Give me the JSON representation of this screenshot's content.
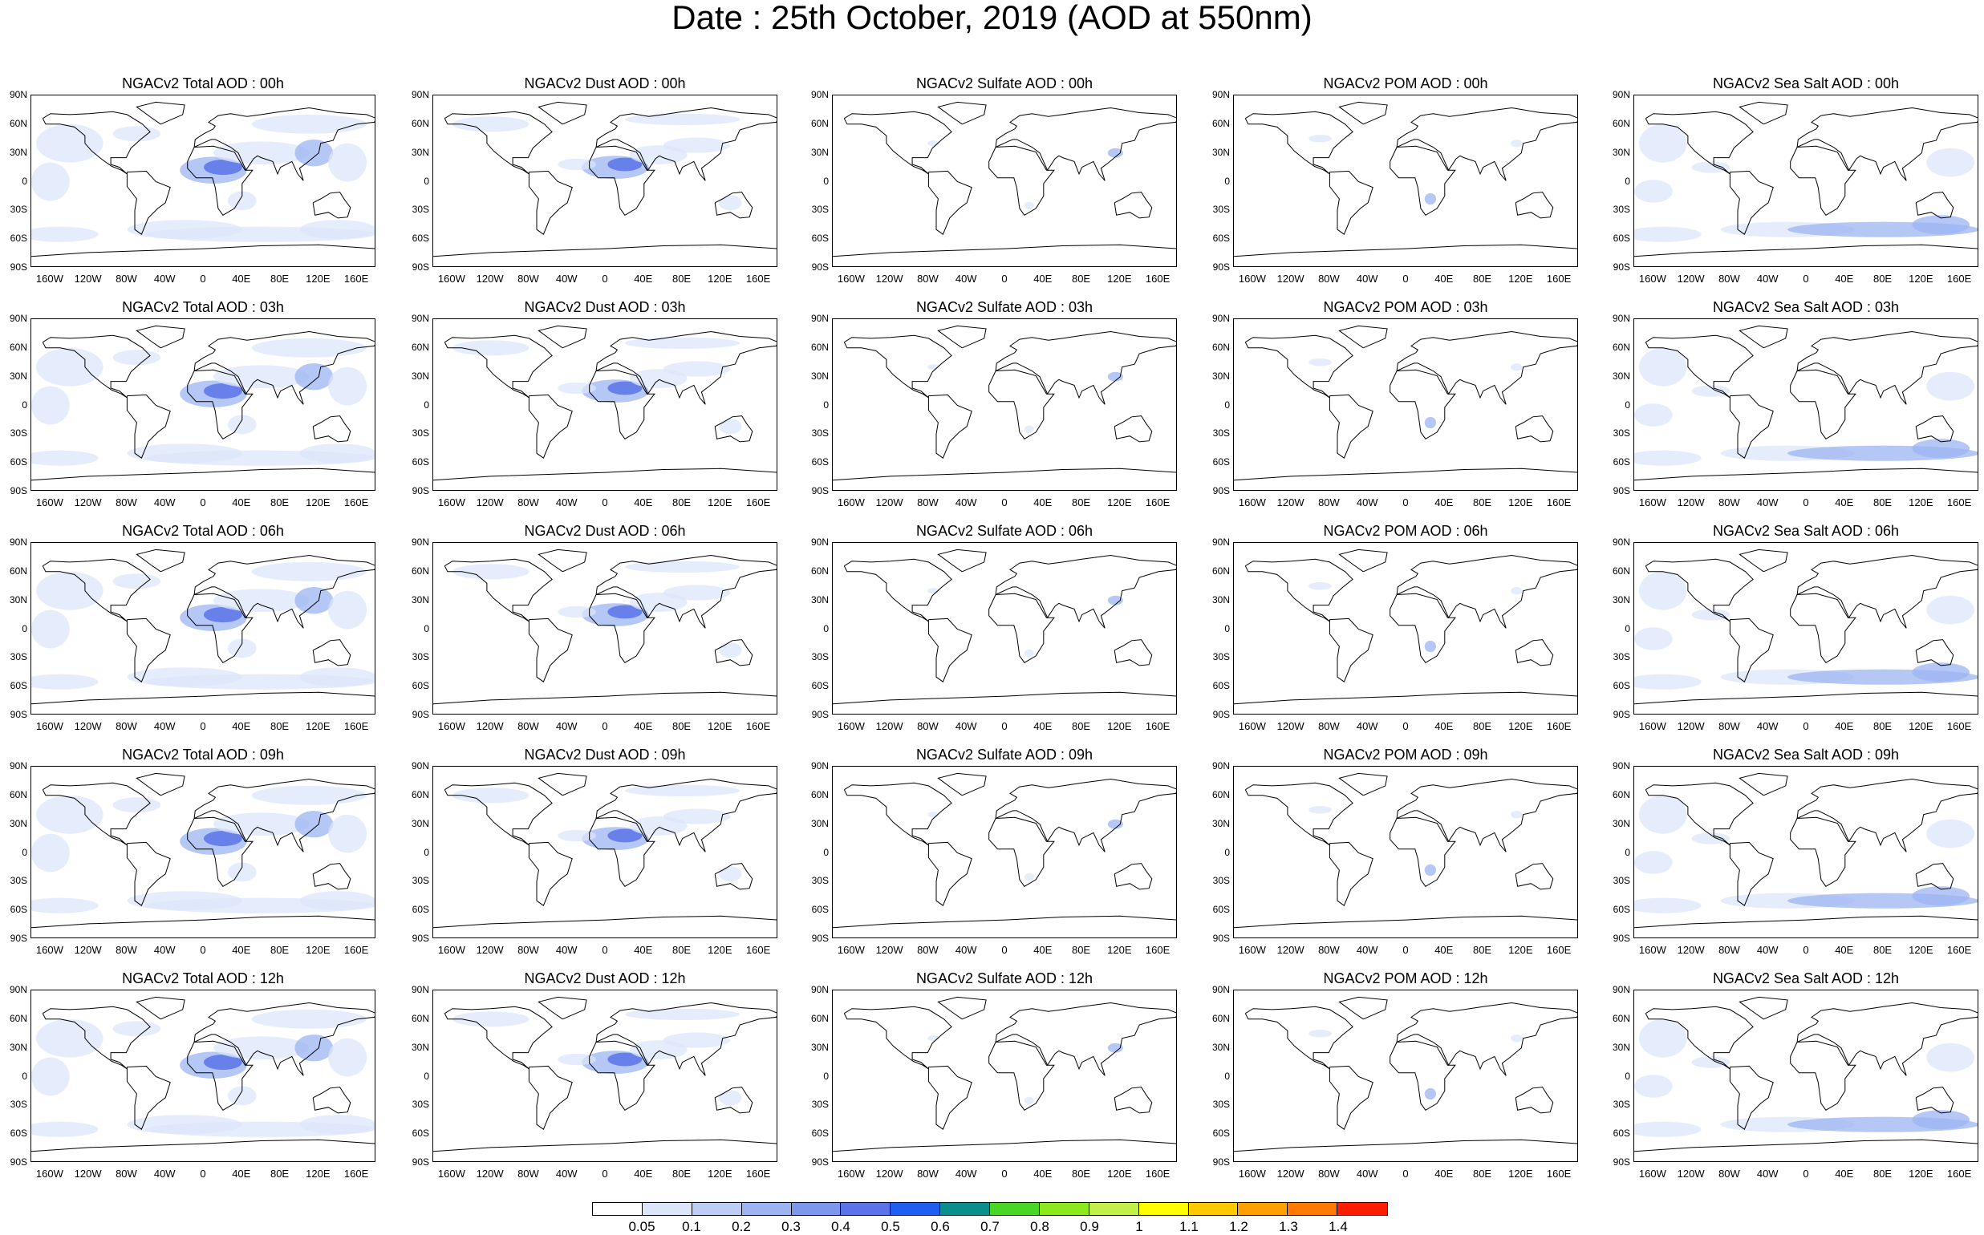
{
  "title": "Date : 25th October, 2019 (AOD at 550nm)",
  "lat_ticks": [
    "90N",
    "60N",
    "30N",
    "0",
    "30S",
    "60S",
    "90S"
  ],
  "lon_ticks": [
    "160W",
    "120W",
    "80W",
    "40W",
    "0",
    "40E",
    "80E",
    "120E",
    "160E"
  ],
  "panels": [
    [
      "NGACv2 Total AOD : 00h",
      "NGACv2 Dust AOD : 00h",
      "NGACv2 Sulfate AOD : 00h",
      "NGACv2 POM AOD : 00h",
      "NGACv2 Sea Salt AOD : 00h"
    ],
    [
      "NGACv2 Total AOD : 03h",
      "NGACv2 Dust AOD : 03h",
      "NGACv2 Sulfate AOD : 03h",
      "NGACv2 POM AOD : 03h",
      "NGACv2 Sea Salt AOD : 03h"
    ],
    [
      "NGACv2 Total AOD : 06h",
      "NGACv2 Dust AOD : 06h",
      "NGACv2 Sulfate AOD : 06h",
      "NGACv2 POM AOD : 06h",
      "NGACv2 Sea Salt AOD : 06h"
    ],
    [
      "NGACv2 Total AOD : 09h",
      "NGACv2 Dust AOD : 09h",
      "NGACv2 Sulfate AOD : 09h",
      "NGACv2 POM AOD : 09h",
      "NGACv2 Sea Salt  AOD : 09h"
    ],
    [
      "NGACv2 Total AOD : 12h",
      "NGACv2 Dust AOD : 12h",
      "NGACv2 Sulfate AOD : 12h",
      "NGACv2 POM  AOD : 12h",
      "NGACv2 Sea Salt AOD : 12h"
    ]
  ],
  "colorbar": {
    "labels": [
      "0.05",
      "0.1",
      "0.2",
      "0.3",
      "0.4",
      "0.5",
      "0.6",
      "0.7",
      "0.8",
      "0.9",
      "1",
      "1.1",
      "1.2",
      "1.3",
      "1.4"
    ],
    "colors": [
      "#ffffff",
      "#dce6fa",
      "#bccdf6",
      "#9cb4f1",
      "#7d97ec",
      "#5b73e8",
      "#1f5ff0",
      "#0a8f8c",
      "#4ad624",
      "#8ee81e",
      "#c2ef4a",
      "#ffff00",
      "#ffc800",
      "#ff9f00",
      "#ff7a00",
      "#ff1e00"
    ]
  },
  "colors": {
    "land_outline": "#000000",
    "aod_low": "#dce6fa",
    "aod_mid": "#9cb4f1",
    "aod_high": "#5b73e8"
  }
}
